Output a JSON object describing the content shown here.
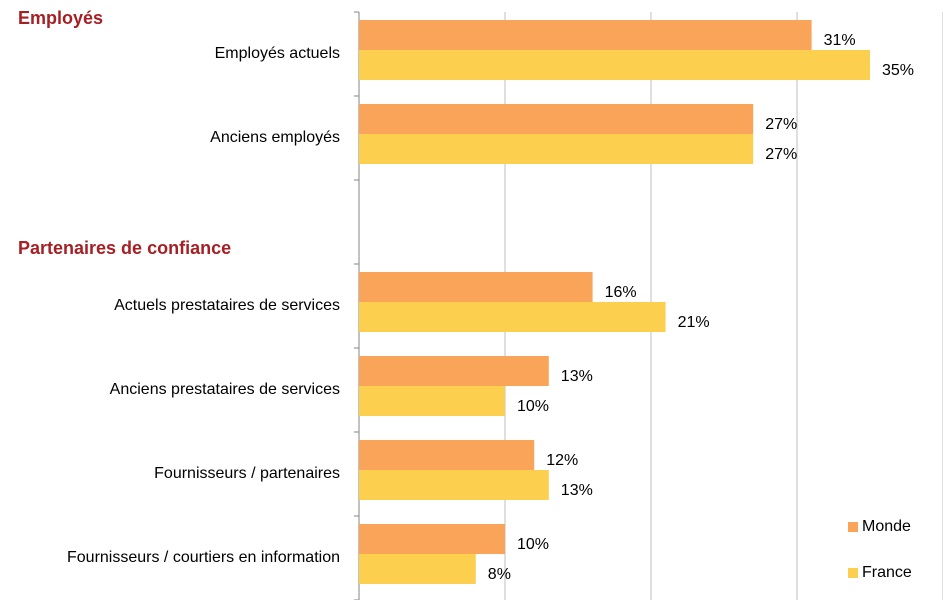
{
  "chart_data": {
    "type": "bar",
    "orientation": "horizontal",
    "sections": [
      "Employés",
      "Partenaires de confiance"
    ],
    "categories": [
      "Employés actuels",
      "Anciens employés",
      null,
      "Actuels prestataires de services",
      "Anciens prestataires de services",
      "Fournisseurs / partenaires",
      "Fournisseurs / courtiers en information"
    ],
    "series": [
      {
        "name": "Monde",
        "color": "#f9a459",
        "values": [
          31,
          27,
          null,
          16,
          13,
          12,
          10
        ],
        "value_labels": [
          "31%",
          "27%",
          null,
          "16%",
          "13%",
          "12%",
          "10%"
        ]
      },
      {
        "name": "France",
        "color": "#fdcf4f",
        "values": [
          35,
          27,
          null,
          21,
          10,
          13,
          8
        ],
        "value_labels": [
          "35%",
          "27%",
          null,
          "21%",
          "10%",
          "13%",
          "8%"
        ]
      }
    ],
    "xlim": [
      0,
      40
    ],
    "xticks": [
      0,
      10,
      20,
      30,
      40
    ],
    "grid": true,
    "legend": "lower right"
  }
}
